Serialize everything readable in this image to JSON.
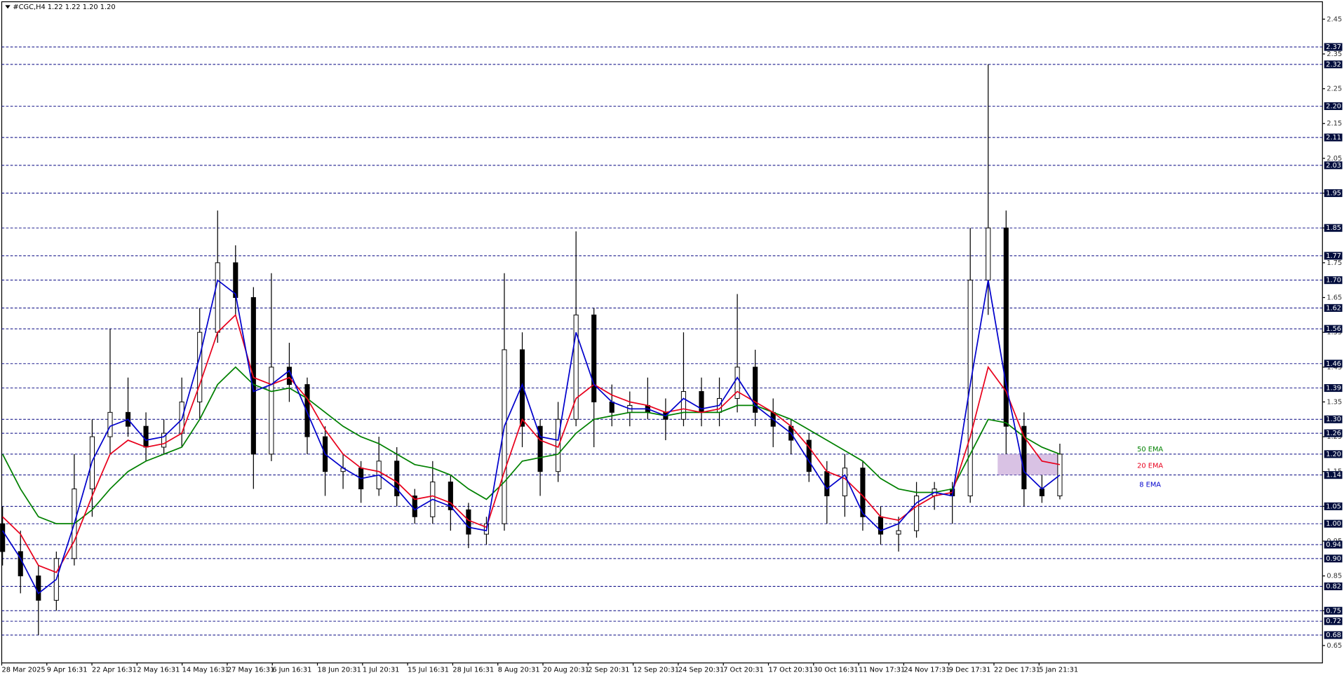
{
  "chart_data": {
    "type": "candlestick",
    "title": "#CGC,H4  1.22 1.22 1.20 1.20",
    "ylim": [
      0.6,
      2.5
    ],
    "yticks": [
      2.45,
      2.35,
      2.25,
      2.15,
      2.05,
      1.95,
      1.85,
      1.75,
      1.65,
      1.55,
      1.45,
      1.35,
      1.25,
      1.15,
      1.05,
      0.95,
      0.85,
      0.75,
      0.65
    ],
    "levels": [
      2.37,
      2.32,
      {
        "value": 2.2,
        "label": "2.20"
      },
      2.11,
      2.03,
      1.95,
      1.85,
      1.77,
      {
        "value": 1.7,
        "label": "1.70"
      },
      1.62,
      1.56,
      1.46,
      1.39,
      {
        "value": 1.3,
        "label": "1.30"
      },
      1.26,
      {
        "value": 1.2,
        "label": "1.20"
      },
      1.14,
      1.05,
      {
        "value": 1,
        "label": "1.00"
      },
      0.94,
      {
        "value": 0.9,
        "label": "0.90"
      },
      0.82,
      0.75,
      0.72,
      0.68
    ],
    "x_labels": [
      "28 Mar 2025",
      "9 Apr 16:31",
      "22 Apr 16:31",
      "2 May 16:31",
      "14 May 16:31",
      "27 May 16:31",
      "6 Jun 16:31",
      "18 Jun 20:31",
      "1 Jul 20:31",
      "15 Jul 16:31",
      "28 Jul 16:31",
      "8 Aug 20:31",
      "20 Aug 20:31",
      "2 Sep 20:31",
      "12 Sep 20:31",
      "24 Sep 20:31",
      "7 Oct 20:31",
      "17 Oct 20:31",
      "30 Oct 16:31",
      "11 Nov 17:31",
      "24 Nov 17:31",
      "9 Dec 17:31",
      "22 Dec 17:31",
      "5 Jan 21:31"
    ],
    "candles": {
      "open": [
        1.0,
        0.92,
        0.85,
        0.78,
        0.9,
        1.1,
        1.25,
        1.32,
        1.28,
        1.22,
        1.26,
        1.35,
        1.55,
        1.75,
        1.65,
        1.2,
        1.45,
        1.4,
        1.25,
        1.15,
        1.16,
        1.1,
        1.18,
        1.08,
        1.02,
        1.12,
        1.04,
        0.97,
        1.0,
        1.5,
        1.28,
        1.15,
        1.3,
        1.6,
        1.35,
        1.32,
        1.34,
        1.32,
        1.3,
        1.38,
        1.32,
        1.36,
        1.45,
        1.32,
        1.28,
        1.24,
        1.15,
        1.08,
        1.16,
        1.02,
        0.97,
        0.98,
        1.08,
        1.1,
        1.08,
        1.7,
        1.85,
        1.28,
        1.1,
        1.08
      ],
      "high": [
        1.05,
        0.98,
        0.88,
        0.92,
        1.2,
        1.3,
        1.56,
        1.42,
        1.32,
        1.3,
        1.42,
        1.62,
        1.9,
        1.8,
        1.68,
        1.72,
        1.52,
        1.42,
        1.28,
        1.2,
        1.18,
        1.25,
        1.22,
        1.1,
        1.18,
        1.14,
        1.06,
        1.02,
        1.72,
        1.55,
        1.3,
        1.35,
        1.84,
        1.62,
        1.4,
        1.38,
        1.42,
        1.36,
        1.55,
        1.42,
        1.42,
        1.66,
        1.5,
        1.36,
        1.3,
        1.26,
        1.18,
        1.2,
        1.18,
        1.05,
        1.02,
        1.12,
        1.12,
        1.12,
        1.85,
        2.32,
        1.9,
        1.32,
        1.14,
        1.23
      ],
      "low": [
        0.88,
        0.8,
        0.68,
        0.75,
        0.88,
        1.02,
        1.2,
        1.25,
        1.18,
        1.2,
        1.22,
        1.3,
        1.52,
        1.6,
        1.1,
        1.18,
        1.35,
        1.2,
        1.08,
        1.1,
        1.06,
        1.08,
        1.05,
        1.0,
        1.0,
        0.98,
        0.93,
        0.94,
        0.98,
        1.22,
        1.08,
        1.12,
        1.28,
        1.22,
        1.28,
        1.28,
        1.3,
        1.24,
        1.28,
        1.28,
        1.28,
        1.32,
        1.28,
        1.22,
        1.2,
        1.12,
        1.0,
        1.02,
        0.98,
        0.94,
        0.92,
        0.96,
        1.04,
        1.0,
        1.06,
        1.6,
        1.2,
        1.05,
        1.06,
        1.07
      ],
      "close": [
        0.92,
        0.85,
        0.78,
        0.9,
        1.1,
        1.25,
        1.32,
        1.28,
        1.22,
        1.26,
        1.35,
        1.55,
        1.75,
        1.65,
        1.2,
        1.45,
        1.4,
        1.25,
        1.15,
        1.16,
        1.1,
        1.18,
        1.08,
        1.02,
        1.12,
        1.04,
        0.97,
        1.0,
        1.5,
        1.28,
        1.15,
        1.3,
        1.6,
        1.35,
        1.32,
        1.34,
        1.32,
        1.3,
        1.38,
        1.32,
        1.36,
        1.45,
        1.32,
        1.28,
        1.24,
        1.15,
        1.08,
        1.16,
        1.02,
        0.97,
        0.98,
        1.08,
        1.1,
        1.08,
        1.7,
        1.85,
        1.28,
        1.1,
        1.08,
        1.2
      ]
    },
    "series": [
      {
        "name": "50 EMA",
        "color": "#008000",
        "values": [
          1.2,
          1.1,
          1.02,
          1.0,
          1.0,
          1.04,
          1.1,
          1.15,
          1.18,
          1.2,
          1.22,
          1.3,
          1.4,
          1.45,
          1.4,
          1.38,
          1.39,
          1.36,
          1.32,
          1.28,
          1.25,
          1.23,
          1.2,
          1.17,
          1.16,
          1.14,
          1.1,
          1.07,
          1.12,
          1.18,
          1.19,
          1.2,
          1.26,
          1.3,
          1.31,
          1.32,
          1.32,
          1.31,
          1.32,
          1.32,
          1.32,
          1.34,
          1.34,
          1.32,
          1.3,
          1.27,
          1.24,
          1.21,
          1.18,
          1.13,
          1.1,
          1.09,
          1.09,
          1.1,
          1.2,
          1.3,
          1.29,
          1.25,
          1.22,
          1.2
        ]
      },
      {
        "name": "20 EMA",
        "color": "#e8001c",
        "values": [
          1.02,
          0.97,
          0.88,
          0.86,
          0.95,
          1.08,
          1.2,
          1.24,
          1.22,
          1.23,
          1.26,
          1.4,
          1.55,
          1.6,
          1.42,
          1.4,
          1.42,
          1.36,
          1.27,
          1.2,
          1.16,
          1.15,
          1.12,
          1.07,
          1.08,
          1.06,
          1.01,
          0.99,
          1.15,
          1.3,
          1.24,
          1.22,
          1.36,
          1.4,
          1.37,
          1.35,
          1.34,
          1.32,
          1.33,
          1.32,
          1.33,
          1.38,
          1.35,
          1.32,
          1.28,
          1.22,
          1.15,
          1.13,
          1.08,
          1.02,
          1.01,
          1.05,
          1.08,
          1.09,
          1.25,
          1.45,
          1.38,
          1.25,
          1.18,
          1.17
        ]
      },
      {
        "name": "8 EMA",
        "color": "#0000cc",
        "values": [
          0.98,
          0.9,
          0.8,
          0.84,
          1.0,
          1.18,
          1.28,
          1.3,
          1.24,
          1.25,
          1.3,
          1.48,
          1.7,
          1.66,
          1.38,
          1.4,
          1.44,
          1.32,
          1.2,
          1.16,
          1.13,
          1.14,
          1.1,
          1.04,
          1.07,
          1.05,
          0.99,
          0.98,
          1.28,
          1.4,
          1.25,
          1.24,
          1.55,
          1.4,
          1.35,
          1.33,
          1.33,
          1.31,
          1.36,
          1.33,
          1.34,
          1.42,
          1.34,
          1.3,
          1.26,
          1.18,
          1.1,
          1.14,
          1.03,
          0.98,
          1.0,
          1.06,
          1.09,
          1.08,
          1.4,
          1.7,
          1.4,
          1.15,
          1.1,
          1.14
        ]
      }
    ],
    "zone": [
      1.14,
      1.2
    ]
  }
}
